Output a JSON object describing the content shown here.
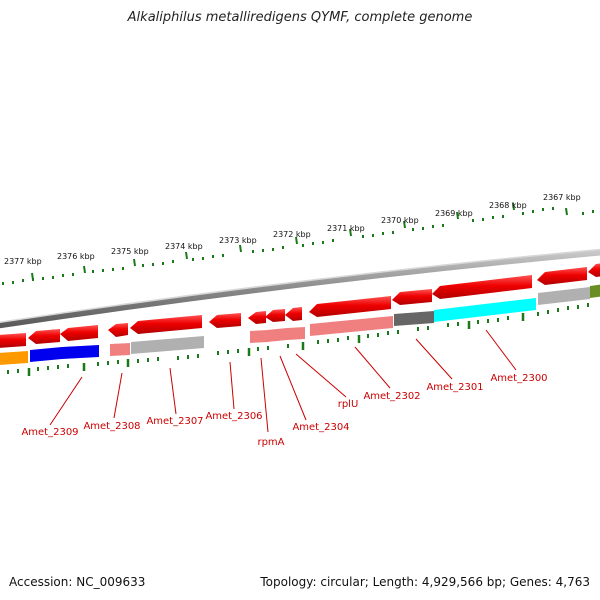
{
  "title": "Alkaliphilus metalliredigens QYMF, complete genome",
  "footer": {
    "accession": "Accession: NC_009633",
    "summary": "Topology: circular; Length: 4,929,566 bp; Genes: 4,763"
  },
  "scale_labels": [
    {
      "id": "kbp-2377",
      "text": "2377 kbp"
    },
    {
      "id": "kbp-2376",
      "text": "2376 kbp"
    },
    {
      "id": "kbp-2375",
      "text": "2375 kbp"
    },
    {
      "id": "kbp-2374",
      "text": "2374 kbp"
    },
    {
      "id": "kbp-2373",
      "text": "2373 kbp"
    },
    {
      "id": "kbp-2372",
      "text": "2372 kbp"
    },
    {
      "id": "kbp-2371",
      "text": "2371 kbp"
    },
    {
      "id": "kbp-2370",
      "text": "2370 kbp"
    },
    {
      "id": "kbp-2369",
      "text": "2369 kbp"
    },
    {
      "id": "kbp-2368",
      "text": "2368 kbp"
    },
    {
      "id": "kbp-2367",
      "text": "2367 kbp"
    }
  ],
  "gene_labels": [
    {
      "id": "amet-2309",
      "text": "Amet_2309"
    },
    {
      "id": "amet-2308",
      "text": "Amet_2308"
    },
    {
      "id": "amet-2307",
      "text": "Amet_2307"
    },
    {
      "id": "amet-2306",
      "text": "Amet_2306"
    },
    {
      "id": "rpma",
      "text": "rpmA"
    },
    {
      "id": "amet-2304",
      "text": "Amet_2304"
    },
    {
      "id": "rplu",
      "text": "rplU"
    },
    {
      "id": "amet-2302",
      "text": "Amet_2302"
    },
    {
      "id": "amet-2301",
      "text": "Amet_2301"
    },
    {
      "id": "amet-2300",
      "text": "Amet_2300"
    }
  ],
  "colors": {
    "gene_red": "#ee1111",
    "label_red": "#cc0000",
    "tick_green": "#1a7a1a",
    "backbone_gray": "#8a8a8a",
    "cog_orange": "#ff9900",
    "cog_blue": "#0000ee",
    "cog_pink": "#f08080",
    "cog_gray": "#b0b0b0",
    "cog_dark_gray": "#666666",
    "cog_cyan": "#00ffff",
    "cog_olive": "#6b8e23"
  }
}
